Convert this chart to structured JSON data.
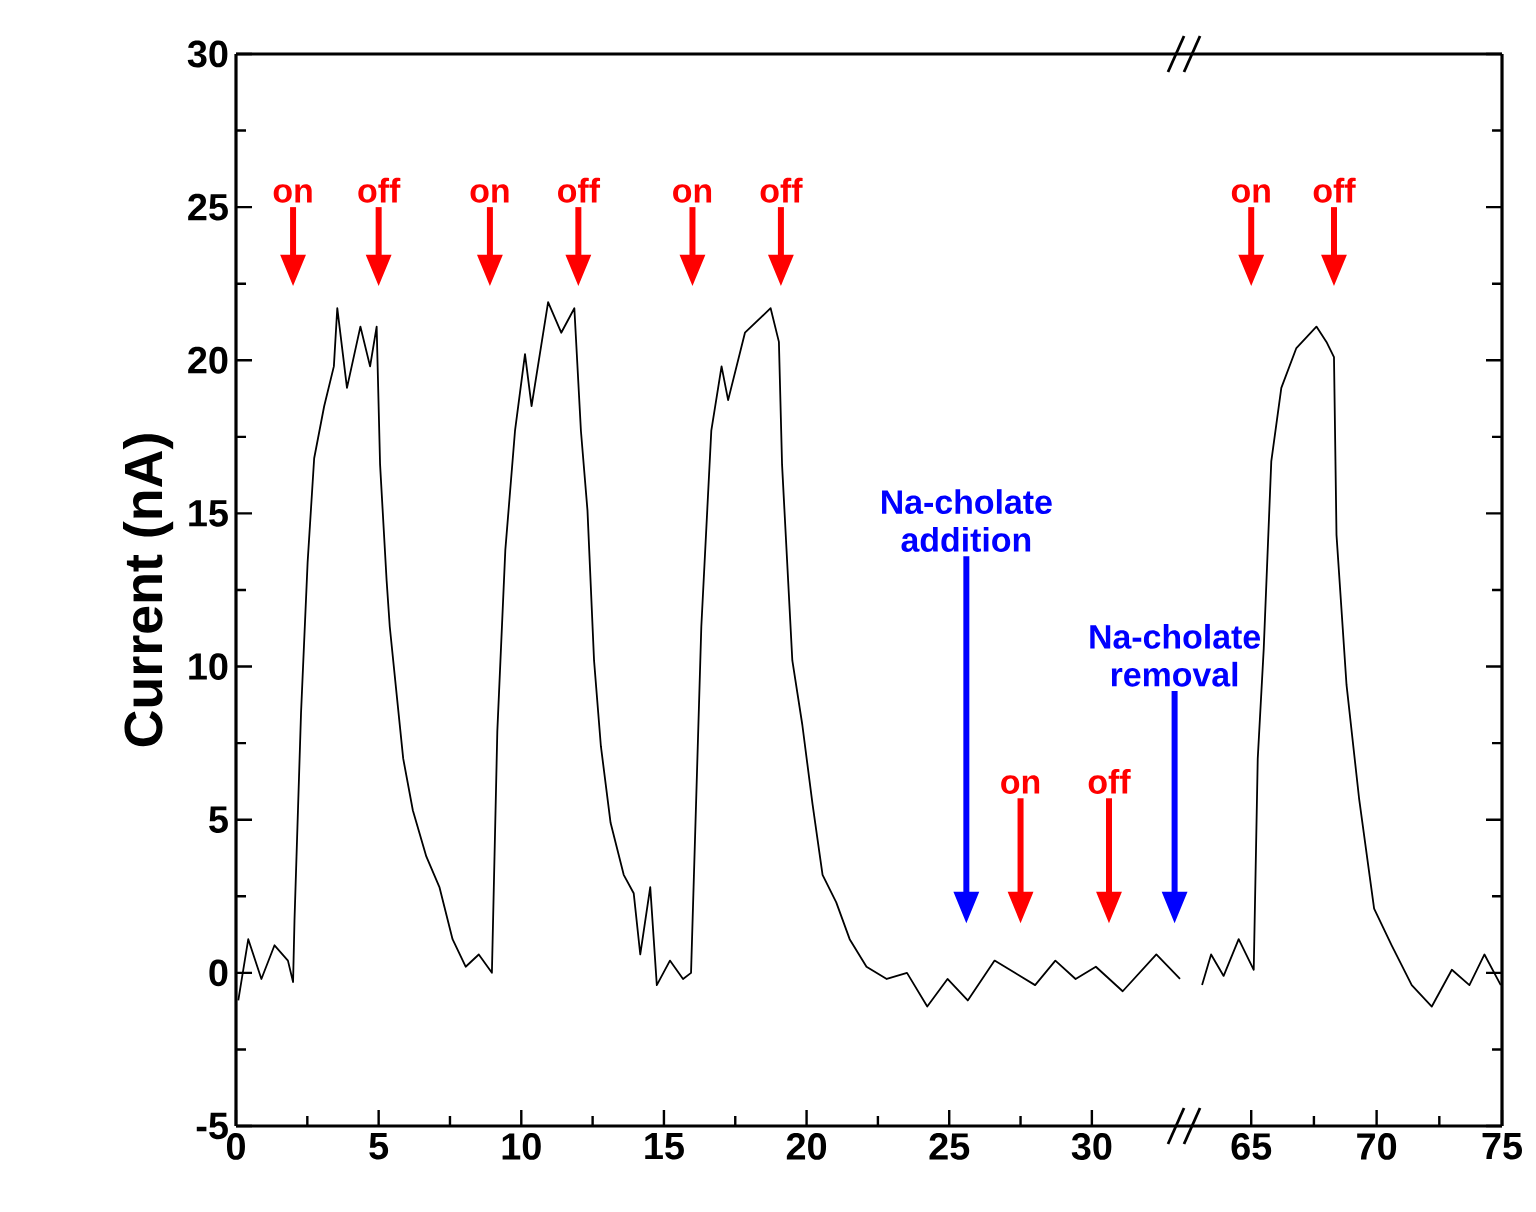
{
  "chart_data": [
    {
      "type": "line",
      "ylabel": "Current (nA)",
      "xlim": [
        0,
        33.3
      ],
      "ylim": [
        -5,
        30
      ],
      "xticks": [
        0,
        5,
        10,
        15,
        20,
        25,
        30
      ],
      "yticks": [
        -5,
        0,
        5,
        10,
        15,
        20,
        25,
        30
      ],
      "x": [
        0.08,
        0.43,
        0.89,
        1.35,
        1.82,
        2.0,
        2.05,
        2.28,
        2.51,
        2.74,
        3.09,
        3.43,
        3.55,
        3.89,
        4.36,
        4.7,
        4.93,
        5.05,
        5.28,
        5.39,
        5.63,
        5.86,
        6.2,
        6.67,
        7.13,
        7.59,
        8.05,
        8.51,
        8.97,
        9.16,
        9.44,
        9.78,
        10.13,
        10.36,
        10.94,
        11.4,
        11.86,
        12.09,
        12.32,
        12.55,
        12.79,
        13.13,
        13.59,
        13.94,
        14.17,
        14.52,
        14.75,
        15.21,
        15.67,
        15.95,
        16.31,
        16.66,
        17.02,
        17.25,
        17.84,
        18.74,
        19.03,
        19.14,
        19.5,
        19.85,
        20.21,
        20.56,
        21.04,
        21.51,
        22.1,
        22.81,
        23.52,
        24.23,
        24.94,
        25.65,
        26.59,
        27.3,
        28.01,
        28.72,
        29.43,
        30.14,
        31.08,
        32.26,
        33.09
      ],
      "series": [
        {
          "color": "#000000",
          "values": [
            -0.9,
            1.1,
            -0.2,
            0.9,
            0.4,
            -0.3,
            1.7,
            8.5,
            13.4,
            16.8,
            18.5,
            19.8,
            21.7,
            19.1,
            21.1,
            19.8,
            21.1,
            16.6,
            12.8,
            11.3,
            9.1,
            7.0,
            5.3,
            3.8,
            2.8,
            1.1,
            0.2,
            0.6,
            0.0,
            7.9,
            13.8,
            17.7,
            20.2,
            18.5,
            21.9,
            20.9,
            21.7,
            17.7,
            15.1,
            10.2,
            7.4,
            4.9,
            3.2,
            2.6,
            0.6,
            2.8,
            -0.4,
            0.4,
            -0.2,
            0.0,
            11.3,
            17.7,
            19.8,
            18.7,
            20.9,
            21.7,
            20.6,
            16.6,
            10.2,
            8.1,
            5.5,
            3.2,
            2.3,
            1.1,
            0.2,
            -0.2,
            0.0,
            -1.1,
            -0.2,
            -0.9,
            0.4,
            0.0,
            -0.4,
            0.4,
            -0.2,
            0.2,
            -0.6,
            0.6,
            -0.2
          ]
        }
      ],
      "annotations": [
        "on",
        "off",
        "on",
        "off",
        "on",
        "off",
        "Na-cholate addition",
        "on",
        "off",
        "Na-cholate removal"
      ]
    },
    {
      "type": "line",
      "xlim": [
        62.4,
        75
      ],
      "ylim": [
        -5,
        30
      ],
      "xticks": [
        65,
        70,
        75
      ],
      "yticks": [
        -5,
        0,
        5,
        10,
        15,
        20,
        25,
        30
      ],
      "tick_labels": "x",
      "x": [
        63.04,
        63.4,
        63.9,
        64.5,
        65.1,
        65.26,
        65.5,
        65.8,
        66.2,
        66.8,
        67.6,
        68.0,
        68.3,
        68.4,
        68.8,
        69.3,
        69.9,
        70.6,
        71.4,
        72.2,
        73.0,
        73.7,
        74.3,
        74.95
      ],
      "series": [
        {
          "color": "#000000",
          "values": [
            -0.4,
            0.6,
            -0.1,
            1.1,
            0.1,
            7.0,
            10.6,
            16.7,
            19.1,
            20.4,
            21.1,
            20.6,
            20.1,
            14.3,
            9.4,
            5.7,
            2.1,
            0.9,
            -0.4,
            -1.1,
            0.1,
            -0.4,
            0.6,
            -0.4
          ]
        }
      ],
      "annotations": [
        "on",
        "off"
      ]
    }
  ]
}
